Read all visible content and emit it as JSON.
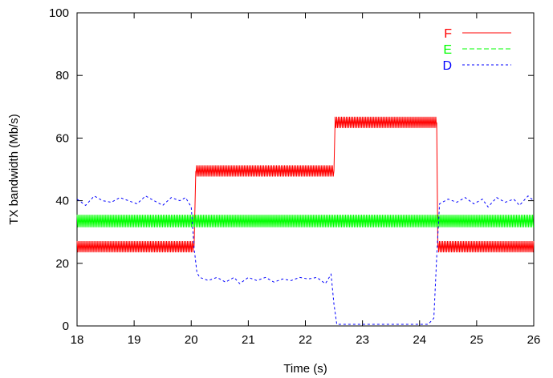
{
  "chart_data": {
    "type": "line",
    "title": "",
    "xlabel": "Time (s)",
    "ylabel": "TX bandwidth (Mb/s)",
    "xlim": [
      18,
      26
    ],
    "ylim": [
      0,
      100
    ],
    "x_ticks": [
      18,
      19,
      20,
      21,
      22,
      23,
      24,
      25,
      26
    ],
    "y_ticks": [
      0,
      20,
      40,
      60,
      80,
      100
    ],
    "grid": false,
    "legend_position": "top-right",
    "series": [
      {
        "name": "F",
        "color": "#ff0000",
        "dash": "solid",
        "style": "dense-oscillation",
        "amplitude": 1.8,
        "points": [
          [
            18.0,
            25.3
          ],
          [
            20.05,
            25.3
          ],
          [
            20.08,
            49.5
          ],
          [
            22.5,
            49.5
          ],
          [
            22.52,
            65.0
          ],
          [
            24.3,
            65.0
          ],
          [
            24.32,
            25.3
          ],
          [
            26.0,
            25.3
          ]
        ]
      },
      {
        "name": "E",
        "color": "#00ff00",
        "dash": "dashed",
        "style": "dense-oscillation",
        "amplitude": 2.0,
        "points": [
          [
            18.0,
            33.5
          ],
          [
            26.0,
            33.5
          ]
        ]
      },
      {
        "name": "D",
        "color": "#0000ff",
        "dash": "dotted",
        "style": "plain",
        "points": [
          [
            18.0,
            40.5
          ],
          [
            18.15,
            38.5
          ],
          [
            18.3,
            41.5
          ],
          [
            18.45,
            40.0
          ],
          [
            18.6,
            39.5
          ],
          [
            18.75,
            41.0
          ],
          [
            18.9,
            40.0
          ],
          [
            19.05,
            39.0
          ],
          [
            19.2,
            41.5
          ],
          [
            19.35,
            40.0
          ],
          [
            19.5,
            38.5
          ],
          [
            19.65,
            41.0
          ],
          [
            19.8,
            40.0
          ],
          [
            19.9,
            41.0
          ],
          [
            20.0,
            38.0
          ],
          [
            20.05,
            25.0
          ],
          [
            20.1,
            17.0
          ],
          [
            20.15,
            15.5
          ],
          [
            20.3,
            14.5
          ],
          [
            20.45,
            15.5
          ],
          [
            20.6,
            14.0
          ],
          [
            20.75,
            15.5
          ],
          [
            20.85,
            13.5
          ],
          [
            21.0,
            15.5
          ],
          [
            21.15,
            14.5
          ],
          [
            21.3,
            15.5
          ],
          [
            21.45,
            14.0
          ],
          [
            21.6,
            15.0
          ],
          [
            21.75,
            14.5
          ],
          [
            21.9,
            15.5
          ],
          [
            22.05,
            15.0
          ],
          [
            22.2,
            15.5
          ],
          [
            22.35,
            13.5
          ],
          [
            22.45,
            16.5
          ],
          [
            22.5,
            7.0
          ],
          [
            22.55,
            0.5
          ],
          [
            24.15,
            0.5
          ],
          [
            24.25,
            2.5
          ],
          [
            24.3,
            22.0
          ],
          [
            24.35,
            39.0
          ],
          [
            24.5,
            40.5
          ],
          [
            24.65,
            39.5
          ],
          [
            24.8,
            41.0
          ],
          [
            24.95,
            39.0
          ],
          [
            25.1,
            40.5
          ],
          [
            25.2,
            38.0
          ],
          [
            25.35,
            41.0
          ],
          [
            25.5,
            39.5
          ],
          [
            25.65,
            40.5
          ],
          [
            25.75,
            38.5
          ],
          [
            25.9,
            41.5
          ],
          [
            26.0,
            40.0
          ]
        ]
      }
    ]
  }
}
